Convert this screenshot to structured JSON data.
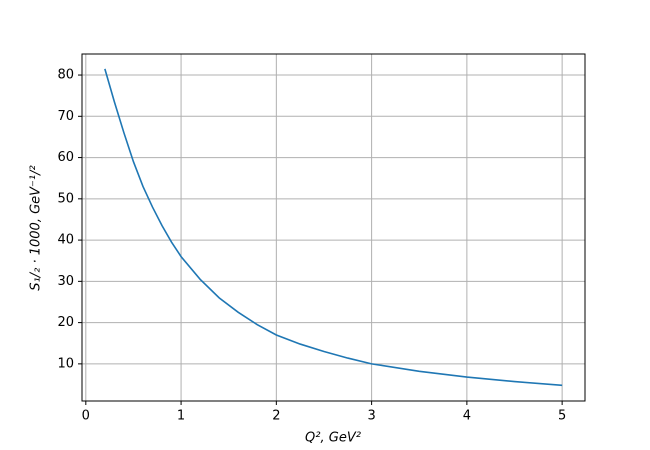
{
  "chart_data": {
    "type": "line",
    "x_label": "Q², GeV²",
    "y_label": "S₁/₂ · 1000, GeV⁻¹/²",
    "x": [
      0.2,
      0.3,
      0.4,
      0.5,
      0.6,
      0.7,
      0.8,
      0.9,
      1.0,
      1.2,
      1.4,
      1.6,
      1.8,
      2.0,
      2.25,
      2.5,
      2.75,
      3.0,
      3.5,
      4.0,
      4.5,
      5.0
    ],
    "series": [
      {
        "color": "#1f77b4",
        "values": [
          81.5,
          73.5,
          66,
          59,
          53,
          48,
          43.5,
          39.5,
          36,
          30.5,
          26,
          22.5,
          19.5,
          17,
          14.8,
          13,
          11.4,
          10,
          8.2,
          6.8,
          5.7,
          4.8
        ]
      }
    ],
    "xlim": [
      -0.04,
      5.24
    ],
    "ylim": [
      1.0,
      85.1
    ],
    "xticks": [
      0,
      1,
      2,
      3,
      4,
      5
    ],
    "yticks": [
      10,
      20,
      30,
      40,
      50,
      60,
      70,
      80
    ],
    "grid": true
  }
}
